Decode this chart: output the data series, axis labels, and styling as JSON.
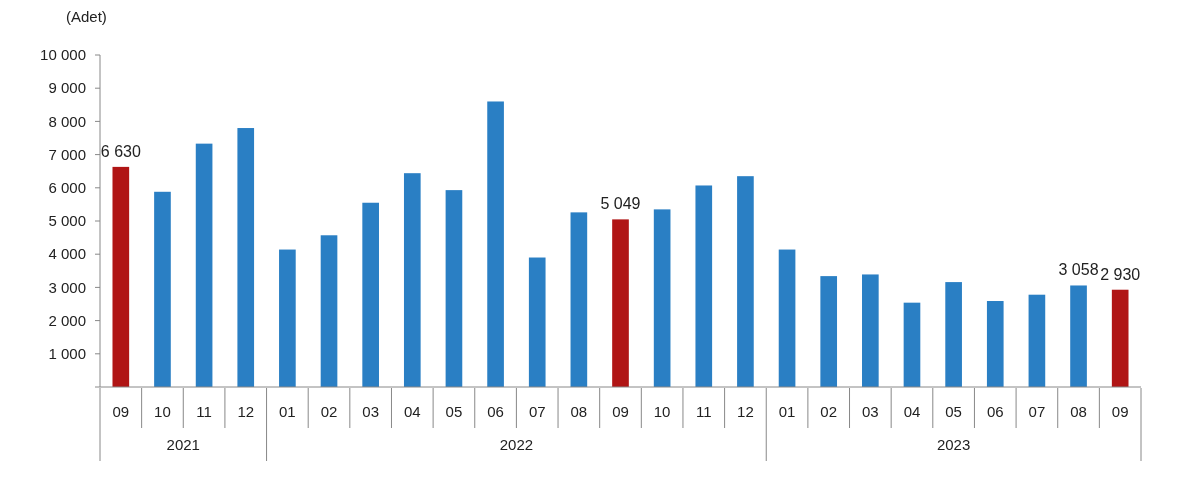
{
  "chart_data": {
    "type": "bar",
    "ylabel": "(Adet)",
    "categories": [
      "09",
      "10",
      "11",
      "12",
      "01",
      "02",
      "03",
      "04",
      "05",
      "06",
      "07",
      "08",
      "09",
      "10",
      "11",
      "12",
      "01",
      "02",
      "03",
      "04",
      "05",
      "06",
      "07",
      "08",
      "09"
    ],
    "values": [
      6630,
      5880,
      7330,
      7800,
      4140,
      4570,
      5550,
      6440,
      5930,
      8600,
      3900,
      5260,
      5049,
      5350,
      6070,
      6350,
      4140,
      3340,
      3390,
      2540,
      3160,
      2590,
      2780,
      3058,
      2930
    ],
    "colors": [
      "#b01515",
      "#2a7fc4",
      "#2a7fc4",
      "#2a7fc4",
      "#2a7fc4",
      "#2a7fc4",
      "#2a7fc4",
      "#2a7fc4",
      "#2a7fc4",
      "#2a7fc4",
      "#2a7fc4",
      "#2a7fc4",
      "#b01515",
      "#2a7fc4",
      "#2a7fc4",
      "#2a7fc4",
      "#2a7fc4",
      "#2a7fc4",
      "#2a7fc4",
      "#2a7fc4",
      "#2a7fc4",
      "#2a7fc4",
      "#2a7fc4",
      "#2a7fc4",
      "#b01515"
    ],
    "value_labels": [
      "6 630",
      null,
      null,
      null,
      null,
      null,
      null,
      null,
      null,
      null,
      null,
      null,
      "5 049",
      null,
      null,
      null,
      null,
      null,
      null,
      null,
      null,
      null,
      null,
      "3 058",
      "2 930"
    ],
    "annotations": [
      "2021",
      "2022",
      "2023"
    ],
    "ylim": [
      0,
      10000
    ],
    "yticks": [
      {
        "value": 0,
        "label": null
      },
      {
        "value": 1000,
        "label": "1 000"
      },
      {
        "value": 2000,
        "label": "2 000"
      },
      {
        "value": 3000,
        "label": "3 000"
      },
      {
        "value": 4000,
        "label": "4 000"
      },
      {
        "value": 5000,
        "label": "5 000"
      },
      {
        "value": 6000,
        "label": "6 000"
      },
      {
        "value": 7000,
        "label": "7 000"
      },
      {
        "value": 8000,
        "label": "8 000"
      },
      {
        "value": 9000,
        "label": "9 000"
      },
      {
        "value": 10000,
        "label": "10 000"
      }
    ],
    "grid": false
  }
}
